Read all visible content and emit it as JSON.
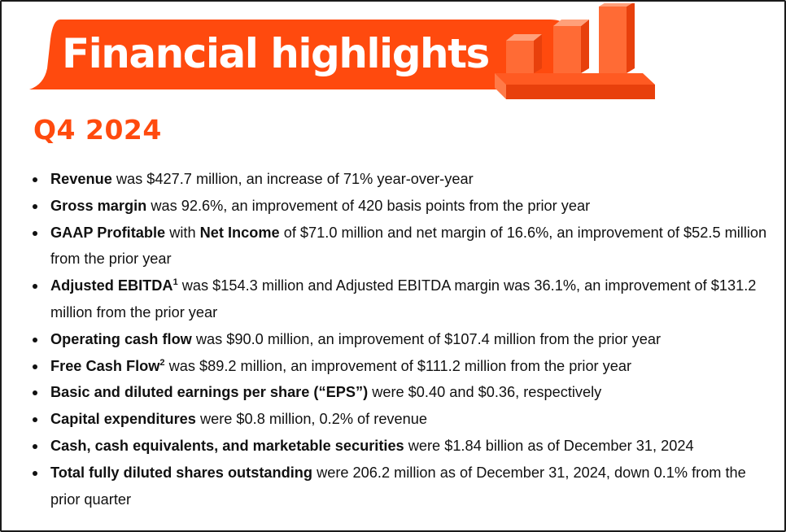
{
  "header": {
    "title": "Financial highlights",
    "accent_color": "#ff4a0e",
    "icon": "bar-chart-icon"
  },
  "section": {
    "period": "Q4 2024"
  },
  "highlights": [
    {
      "bold": "Revenue",
      "text": " was $427.7 million, an increase of 71% year-over-year"
    },
    {
      "bold": "Gross margin",
      "text": " was 92.6%, an improvement of 420 basis points from the prior year"
    },
    {
      "bold": "GAAP Profitable",
      "mid": " with ",
      "bold2": "Net Income",
      "text": " of $71.0 million and net margin of 16.6%, an improvement of $52.5 million from the prior year"
    },
    {
      "bold": "Adjusted EBITDA",
      "sup": "1",
      "text": " was $154.3 million and Adjusted EBITDA margin was 36.1%, an improvement of $131.2 million from the prior year"
    },
    {
      "bold": "Operating cash flow",
      "text": " was $90.0 million, an improvement of $107.4 million from the prior year"
    },
    {
      "bold": "Free Cash Flow",
      "sup": "2",
      "text": " was $89.2 million, an improvement of $111.2 million from the prior year"
    },
    {
      "bold": "Basic and diluted earnings per share (“EPS”)",
      "text": " were $0.40 and $0.36, respectively"
    },
    {
      "bold": "Capital expenditures",
      "text": " were $0.8 million, 0.2% of revenue"
    },
    {
      "bold": "Cash, cash equivalents, and marketable securities",
      "text": " were $1.84 billion as of December 31, 2024"
    },
    {
      "bold": "Total fully diluted shares outstanding",
      "text": " were 206.2 million as of December 31, 2024, down 0.1% from the prior quarter"
    }
  ]
}
